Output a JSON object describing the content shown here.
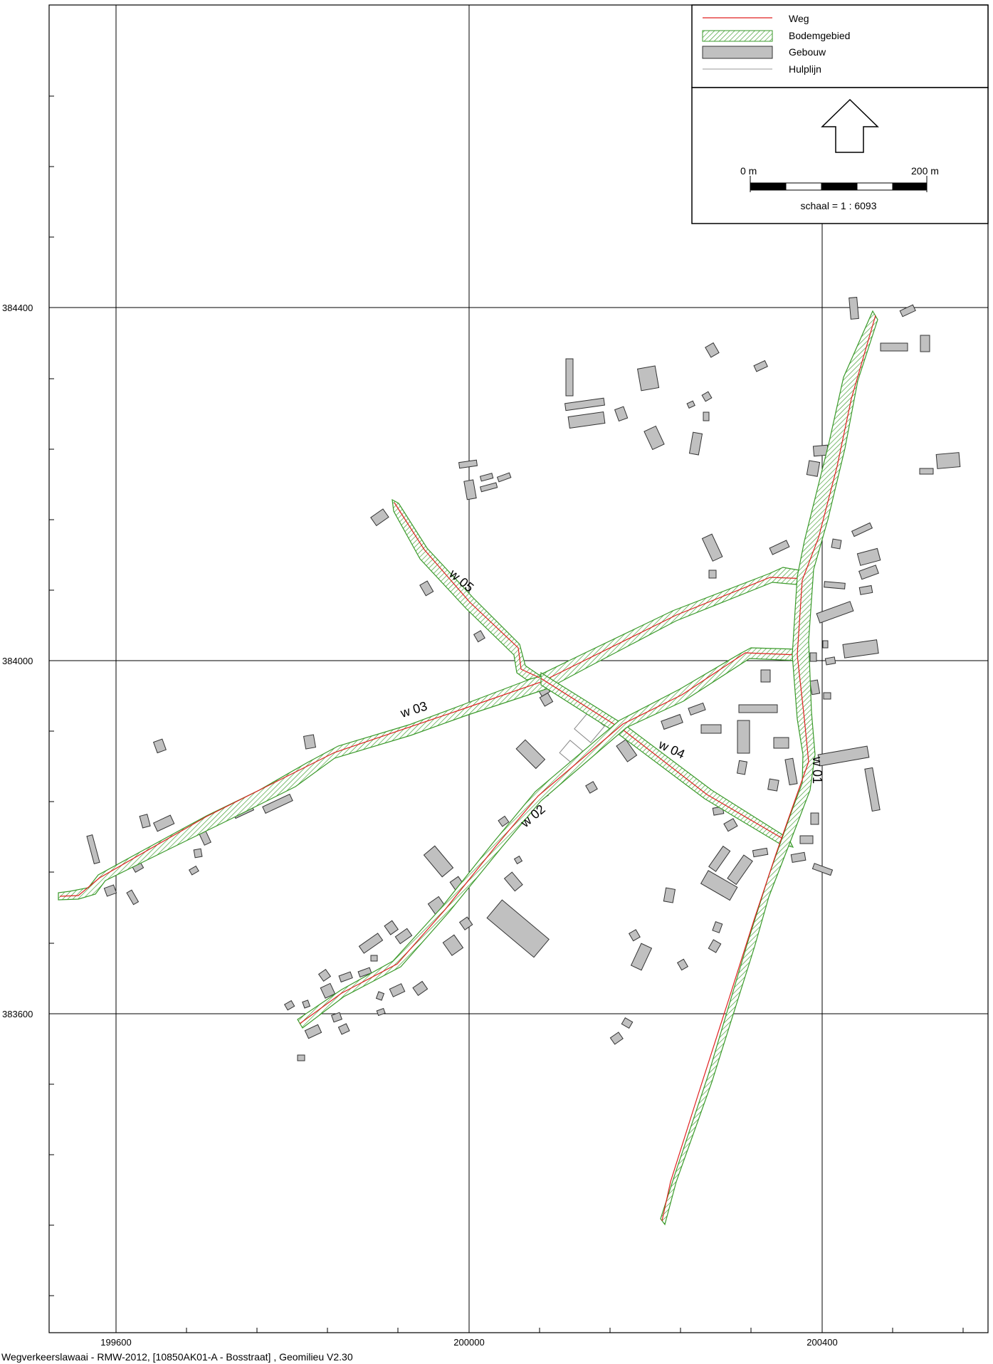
{
  "map": {
    "grid_x_labels": [
      "199600",
      "200000",
      "200400"
    ],
    "grid_y_labels": [
      "384400",
      "384000",
      "383600"
    ],
    "road_labels": [
      "w 01",
      "w 02",
      "w 03",
      "w 04",
      "w 05"
    ]
  },
  "legend": {
    "items": [
      {
        "label": "Weg",
        "icon": "red-line-icon"
      },
      {
        "label": "Bodemgebied",
        "icon": "green-hatch-icon"
      },
      {
        "label": "Gebouw",
        "icon": "gray-rectangle-icon"
      },
      {
        "label": "Hulplijn",
        "icon": "gray-line-icon"
      }
    ]
  },
  "scalebar": {
    "start_label": "0 m",
    "end_label": "200 m",
    "scale_text": "schaal = 1 : 6093",
    "north_icon": "north-arrow-icon"
  },
  "footer": {
    "text": "Wegverkeerslawaai - RMW-2012, [10850AK01-A - Bosstraat] , Geomilieu V2.30"
  },
  "colors": {
    "road": "#e02020",
    "ground": "#3a9a2a",
    "building_fill": "#c0c0c0",
    "building_stroke": "#333333",
    "grid": "#000000"
  }
}
